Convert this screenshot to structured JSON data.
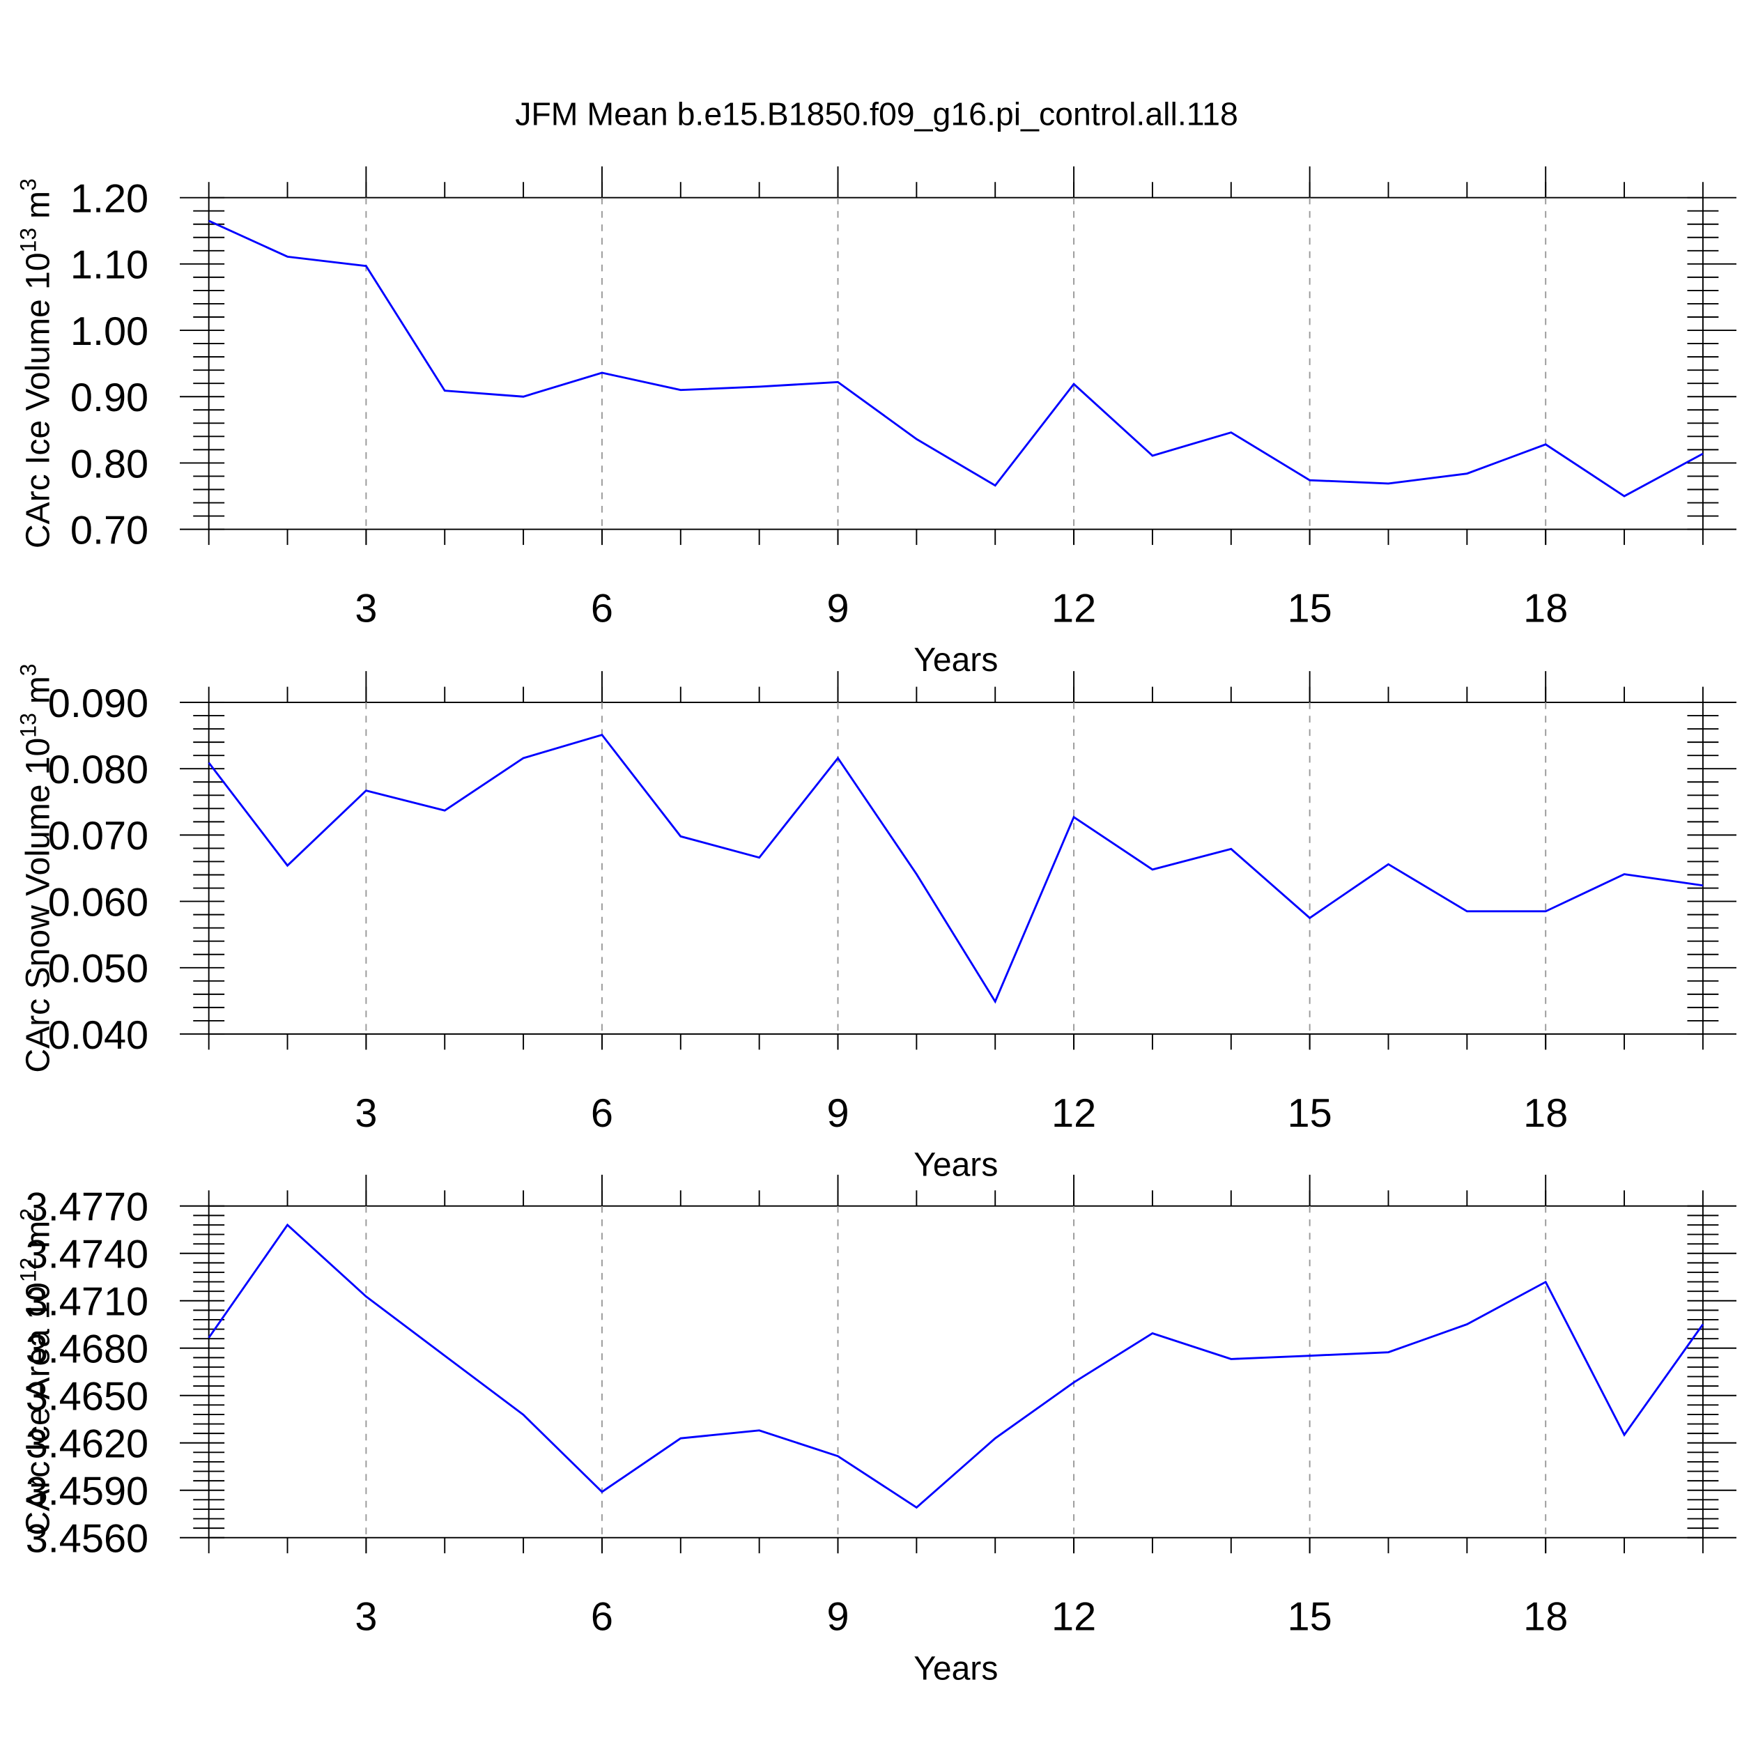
{
  "chart_data": [
    {
      "type": "line",
      "title": "JFM Mean b.e15.B1850.f09_g16.pi_control.all.118",
      "ylabel": "CArc Ice Volume 10",
      "ylabel_exp": "13",
      "ylabel_unit": "m",
      "ylabel_unit_exp": "3",
      "xlabel": "Years",
      "x": [
        1,
        2,
        3,
        4,
        5,
        6,
        7,
        8,
        9,
        10,
        11,
        12,
        13,
        14,
        15,
        16,
        17,
        18,
        19,
        20
      ],
      "series": [
        {
          "color": "#0000ff",
          "values": [
            1.165,
            1.111,
            1.097,
            0.909,
            0.9,
            0.936,
            0.91,
            0.915,
            0.922,
            0.836,
            0.766,
            0.919,
            0.811,
            0.846,
            0.774,
            0.769,
            0.784,
            0.828,
            0.75,
            0.814
          ]
        }
      ],
      "xlim": [
        1,
        20
      ],
      "xticks": [
        3,
        6,
        9,
        12,
        15,
        18
      ],
      "ylim": [
        0.7,
        1.2
      ],
      "yticks": [
        {
          "value": 0.7,
          "label": "0.70"
        },
        {
          "value": 0.8,
          "label": "0.80"
        },
        {
          "value": 0.9,
          "label": "0.90"
        },
        {
          "value": 1.0,
          "label": "1.00"
        },
        {
          "value": 1.1,
          "label": "1.10"
        },
        {
          "value": 1.2,
          "label": "1.20"
        }
      ],
      "grid": "x"
    },
    {
      "type": "line",
      "ylabel": "CArc Snow Volume 10",
      "ylabel_exp": "13",
      "ylabel_unit": "m",
      "ylabel_unit_exp": "3",
      "xlabel": "Years",
      "x": [
        1,
        2,
        3,
        4,
        5,
        6,
        7,
        8,
        9,
        10,
        11,
        12,
        13,
        14,
        15,
        16,
        17,
        18,
        19,
        20
      ],
      "series": [
        {
          "color": "#0000ff",
          "values": [
            0.0809,
            0.0654,
            0.0767,
            0.0737,
            0.0816,
            0.0851,
            0.0698,
            0.0666,
            0.0816,
            0.0641,
            0.0449,
            0.0727,
            0.0648,
            0.0679,
            0.0575,
            0.0656,
            0.0585,
            0.0585,
            0.0641,
            0.0624
          ]
        }
      ],
      "xlim": [
        1,
        20
      ],
      "xticks": [
        3,
        6,
        9,
        12,
        15,
        18
      ],
      "ylim": [
        0.04,
        0.09
      ],
      "yticks": [
        {
          "value": 0.04,
          "label": "0.040"
        },
        {
          "value": 0.05,
          "label": "0.050"
        },
        {
          "value": 0.06,
          "label": "0.060"
        },
        {
          "value": 0.07,
          "label": "0.070"
        },
        {
          "value": 0.08,
          "label": "0.080"
        },
        {
          "value": 0.09,
          "label": "0.090"
        }
      ],
      "grid": "x"
    },
    {
      "type": "line",
      "ylabel": "CArc Ice Area 10",
      "ylabel_exp": "12",
      "ylabel_unit": "m",
      "ylabel_unit_exp": "2",
      "xlabel": "Years",
      "x": [
        1,
        2,
        3,
        4,
        5,
        6,
        7,
        8,
        9,
        10,
        11,
        12,
        13,
        14,
        15,
        16,
        17,
        18,
        19,
        20
      ],
      "series": [
        {
          "color": "#0000ff",
          "values": [
            3.46866,
            3.4758,
            3.47127,
            3.46752,
            3.46378,
            3.4589,
            3.46229,
            3.46279,
            3.46116,
            3.45791,
            3.46229,
            3.46583,
            3.46894,
            3.46731,
            3.46752,
            3.46774,
            3.46951,
            3.47219,
            3.46251,
            3.46951
          ]
        }
      ],
      "xlim": [
        1,
        20
      ],
      "xticks": [
        3,
        6,
        9,
        12,
        15,
        18
      ],
      "ylim": [
        3.456,
        3.477
      ],
      "yticks": [
        {
          "value": 3.456,
          "label": "3.4560"
        },
        {
          "value": 3.459,
          "label": "3.4590"
        },
        {
          "value": 3.462,
          "label": "3.4620"
        },
        {
          "value": 3.465,
          "label": "3.4650"
        },
        {
          "value": 3.468,
          "label": "3.4680"
        },
        {
          "value": 3.471,
          "label": "3.4710"
        },
        {
          "value": 3.474,
          "label": "3.4740"
        },
        {
          "value": 3.477,
          "label": "3.4770"
        }
      ],
      "grid": "x"
    }
  ]
}
